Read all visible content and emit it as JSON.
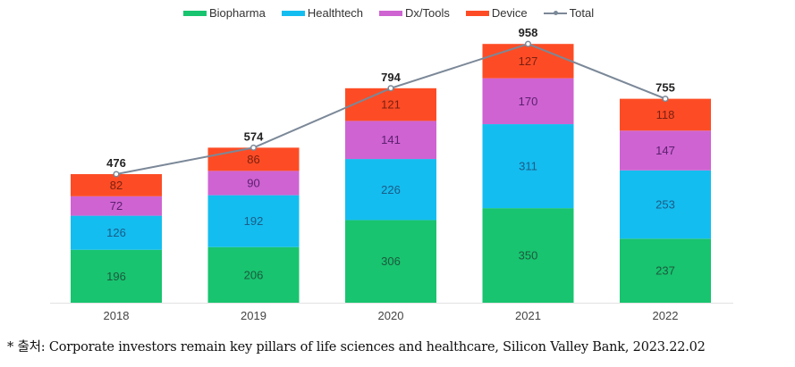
{
  "chart_data": {
    "type": "bar",
    "stacked": true,
    "title": "",
    "xlabel": "",
    "ylabel": "",
    "categories": [
      "2018",
      "2019",
      "2020",
      "2021",
      "2022"
    ],
    "series": [
      {
        "name": "Biopharma",
        "color": "#18c46f",
        "values": [
          196,
          206,
          306,
          350,
          237
        ]
      },
      {
        "name": "Healthtech",
        "color": "#14bdf0",
        "values": [
          126,
          192,
          226,
          311,
          253
        ]
      },
      {
        "name": "Dx/Tools",
        "color": "#cf63d2",
        "values": [
          72,
          90,
          141,
          170,
          147
        ]
      },
      {
        "name": "Device",
        "color": "#fd4c25",
        "values": [
          82,
          86,
          121,
          127,
          118
        ]
      }
    ],
    "line_series": {
      "name": "Total",
      "color": "#7b8898",
      "values": [
        476,
        574,
        794,
        958,
        755
      ]
    },
    "ylim": [
      0,
      1000
    ],
    "grid": false,
    "legend_position": "top-center"
  },
  "footnote": "* 출처: Corporate investors remain key pillars of life sciences and healthcare, Silicon Valley Bank, 2023.22.02"
}
